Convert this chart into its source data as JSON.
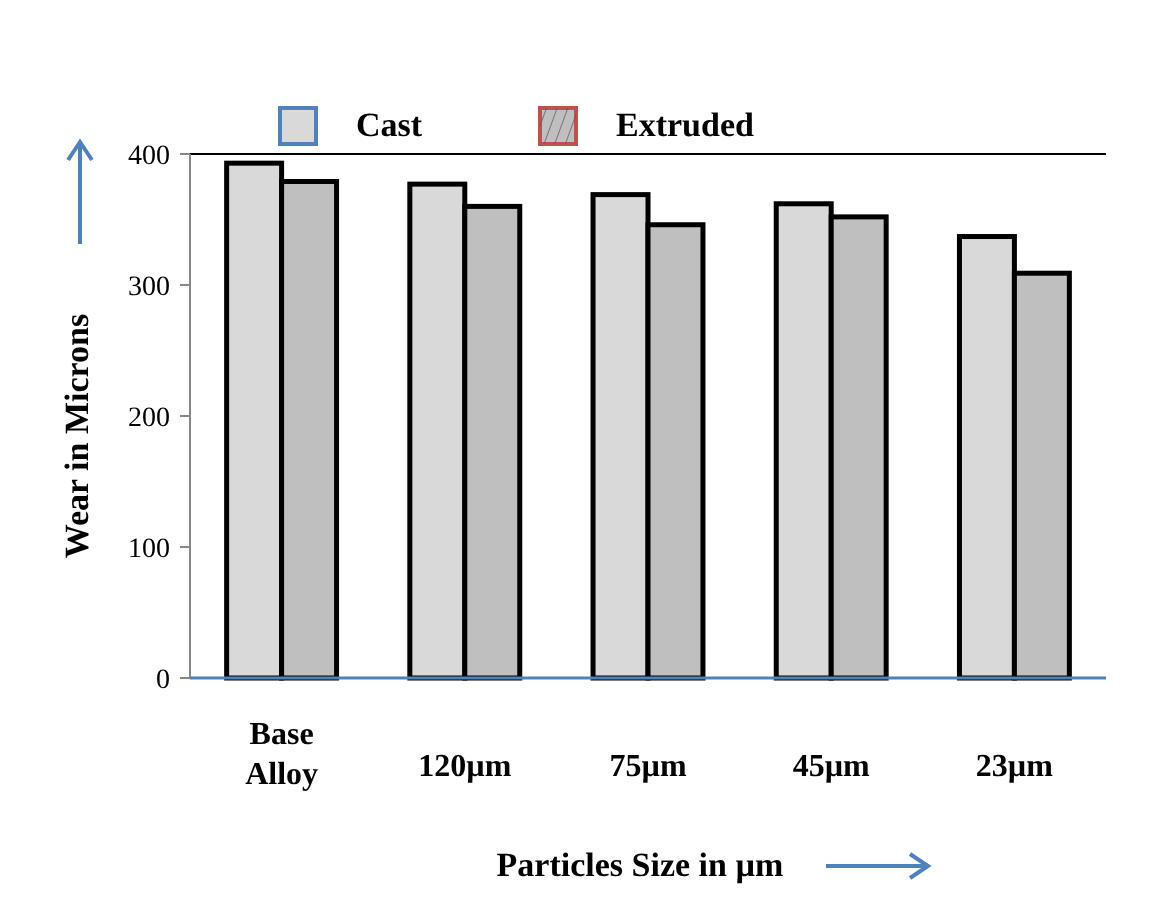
{
  "chart_data": {
    "type": "bar",
    "xlabel": "Particles Size in µm",
    "ylabel": "Wear in Microns",
    "categories": [
      "Base Alloy",
      "120µm",
      "75µm",
      "45µm",
      "23µm"
    ],
    "series": [
      {
        "name": "Cast",
        "color": "#d9d9d9",
        "values": [
          393,
          377,
          369,
          362,
          337
        ]
      },
      {
        "name": "Extruded",
        "color": "#bfbfbf",
        "values": [
          379,
          360,
          346,
          352,
          309
        ]
      }
    ],
    "ylim": [
      0,
      400
    ],
    "yticks": [
      0,
      100,
      200,
      300,
      400
    ],
    "grid": false,
    "legend": "top"
  }
}
